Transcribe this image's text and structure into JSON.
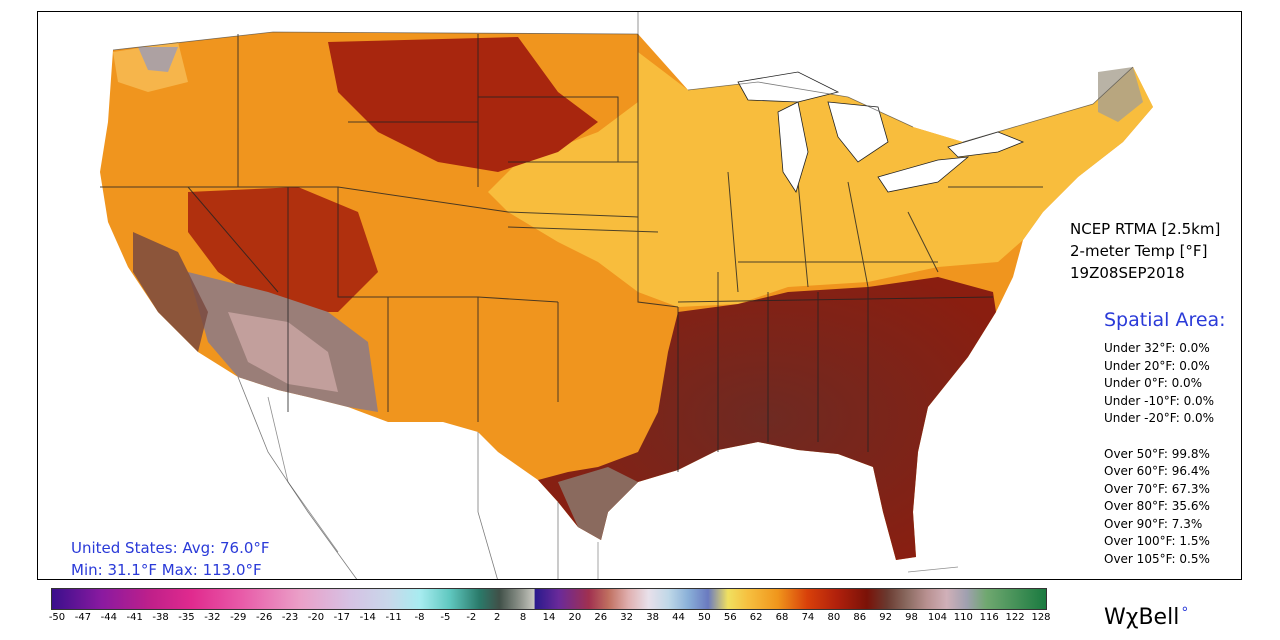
{
  "product": {
    "line1": "NCEP RTMA [2.5km]",
    "line2": "2-meter Temp [°F]",
    "line3": "19Z08SEP2018"
  },
  "spatial": {
    "title": "Spatial Area:",
    "under": [
      "Under 32°F: 0.0%",
      "Under 20°F: 0.0%",
      "Under 0°F: 0.0%",
      "Under -10°F: 0.0%",
      "Under -20°F: 0.0%"
    ],
    "over": [
      "Over 50°F: 99.8%",
      "Over 60°F: 96.4%",
      "Over 70°F: 67.3%",
      "Over 80°F: 35.6%",
      "Over 90°F: 7.3%",
      "Over 100°F: 1.5%",
      "Over 105°F: 0.5%"
    ]
  },
  "summary": {
    "line1": "United States: Avg:  76.0°F",
    "line2": "Min:  31.1°F Max: 113.0°F"
  },
  "colorbar_labels": [
    "-50",
    "-47",
    "-44",
    "-41",
    "-38",
    "-35",
    "-32",
    "-29",
    "-26",
    "-23",
    "-20",
    "-17",
    "-14",
    "-11",
    "-8",
    "-5",
    "-2",
    "2",
    "8",
    "14",
    "20",
    "26",
    "32",
    "38",
    "44",
    "50",
    "56",
    "62",
    "68",
    "74",
    "80",
    "86",
    "92",
    "98",
    "104",
    "110",
    "116",
    "122",
    "128"
  ],
  "brand": {
    "text": "WχBell",
    "mark": "°"
  }
}
